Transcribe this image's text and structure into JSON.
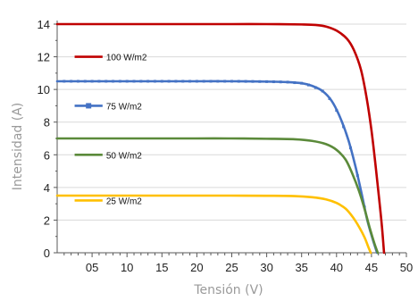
{
  "chart_data": {
    "type": "line",
    "xlabel": "Tensión (V)",
    "ylabel": "Intensidad (A)",
    "xlim": [
      0,
      50
    ],
    "ylim": [
      0,
      14
    ],
    "x_tick_values": [
      5,
      10,
      15,
      20,
      25,
      30,
      35,
      40,
      45,
      50
    ],
    "x_tick_labels": [
      "05",
      "10",
      "15",
      "20",
      "25",
      "30",
      "35",
      "40",
      "45",
      "50"
    ],
    "y_tick_values": [
      0,
      2,
      4,
      6,
      8,
      10,
      12,
      14
    ],
    "y_tick_labels": [
      "0",
      "2",
      "4",
      "6",
      "8",
      "10",
      "12",
      "14"
    ],
    "grid": "horizontal",
    "legend_placement": "inside-left",
    "series": [
      {
        "name": "100 W/m2",
        "color": "#c00000",
        "marker": "none",
        "points": [
          [
            0,
            14
          ],
          [
            5,
            14
          ],
          [
            10,
            14
          ],
          [
            15,
            14
          ],
          [
            20,
            14
          ],
          [
            25,
            14
          ],
          [
            30,
            14
          ],
          [
            35,
            13.98
          ],
          [
            37,
            13.95
          ],
          [
            38.5,
            13.85
          ],
          [
            40,
            13.6
          ],
          [
            41.5,
            13.1
          ],
          [
            42.5,
            12.4
          ],
          [
            43.5,
            11.2
          ],
          [
            44.3,
            9.5
          ],
          [
            45,
            7.5
          ],
          [
            45.6,
            5.3
          ],
          [
            46.1,
            3.3
          ],
          [
            46.5,
            1.6
          ],
          [
            46.8,
            0
          ]
        ]
      },
      {
        "name": "75 W/m2",
        "color": "#4472c4",
        "marker": "square",
        "points": [
          [
            0,
            10.5
          ],
          [
            5,
            10.5
          ],
          [
            10,
            10.5
          ],
          [
            15,
            10.5
          ],
          [
            20,
            10.5
          ],
          [
            25,
            10.5
          ],
          [
            30,
            10.48
          ],
          [
            33,
            10.45
          ],
          [
            35,
            10.38
          ],
          [
            36.5,
            10.22
          ],
          [
            38,
            9.9
          ],
          [
            39.3,
            9.3
          ],
          [
            40.5,
            8.3
          ],
          [
            41.7,
            6.9
          ],
          [
            42.7,
            5.3
          ],
          [
            43.6,
            3.6
          ],
          [
            44.4,
            2.0
          ],
          [
            45.2,
            0.8
          ],
          [
            45.8,
            0
          ]
        ]
      },
      {
        "name": "50 W/m2",
        "color": "#5b8a3a",
        "marker": "none",
        "points": [
          [
            0,
            7
          ],
          [
            5,
            7
          ],
          [
            10,
            7
          ],
          [
            15,
            7
          ],
          [
            20,
            7
          ],
          [
            25,
            7
          ],
          [
            30,
            6.98
          ],
          [
            34,
            6.95
          ],
          [
            36.5,
            6.85
          ],
          [
            38.5,
            6.65
          ],
          [
            40,
            6.3
          ],
          [
            41.3,
            5.7
          ],
          [
            42.3,
            4.8
          ],
          [
            43.2,
            3.8
          ],
          [
            44,
            2.7
          ],
          [
            44.7,
            1.6
          ],
          [
            45.4,
            0.6
          ],
          [
            45.9,
            0
          ]
        ]
      },
      {
        "name": "25 W/m2",
        "color": "#ffc000",
        "marker": "none",
        "points": [
          [
            0,
            3.5
          ],
          [
            5,
            3.5
          ],
          [
            10,
            3.5
          ],
          [
            15,
            3.5
          ],
          [
            20,
            3.5
          ],
          [
            25,
            3.5
          ],
          [
            30,
            3.49
          ],
          [
            34,
            3.47
          ],
          [
            36.5,
            3.4
          ],
          [
            38.5,
            3.27
          ],
          [
            40,
            3.05
          ],
          [
            41.3,
            2.7
          ],
          [
            42.3,
            2.2
          ],
          [
            43.2,
            1.6
          ],
          [
            44,
            0.95
          ],
          [
            44.6,
            0.3
          ],
          [
            44.9,
            0
          ]
        ]
      }
    ]
  }
}
